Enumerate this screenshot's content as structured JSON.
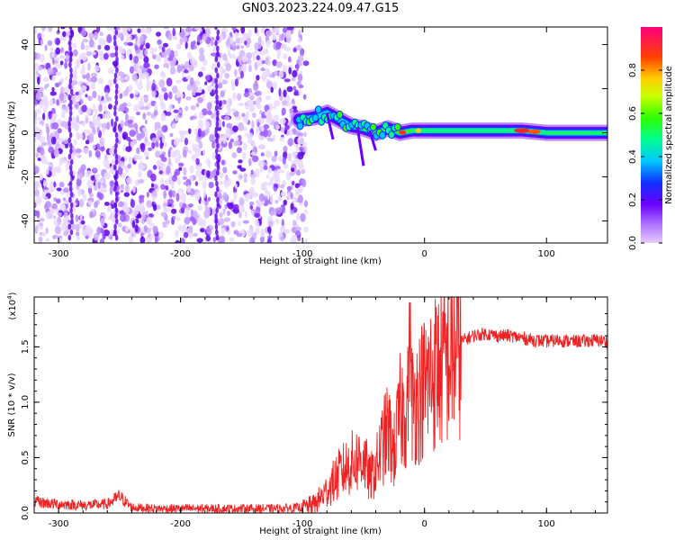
{
  "title": "GN03.2023.224.09.47.G15",
  "chart_data": [
    {
      "type": "heatmap",
      "xlabel": "Height of straight line (km)",
      "ylabel": "Frequency (Hz)",
      "xlim": [
        -320,
        150
      ],
      "ylim": [
        -50,
        48
      ],
      "x_ticks": [
        -300,
        -200,
        -100,
        0,
        100
      ],
      "y_ticks": [
        -40,
        -20,
        0,
        20,
        40
      ],
      "noise_region_x": [
        -320,
        -97
      ],
      "signal_track": [
        {
          "x": -103,
          "y": 6
        },
        {
          "x": -90,
          "y": 7
        },
        {
          "x": -80,
          "y": 9
        },
        {
          "x": -70,
          "y": 6
        },
        {
          "x": -60,
          "y": 3
        },
        {
          "x": -50,
          "y": 2
        },
        {
          "x": -40,
          "y": 0
        },
        {
          "x": -30,
          "y": 2
        },
        {
          "x": -20,
          "y": 0
        },
        {
          "x": -10,
          "y": 1
        },
        {
          "x": 0,
          "y": 1
        },
        {
          "x": 20,
          "y": 1
        },
        {
          "x": 40,
          "y": 1
        },
        {
          "x": 60,
          "y": 1
        },
        {
          "x": 80,
          "y": 1
        },
        {
          "x": 100,
          "y": 0
        },
        {
          "x": 120,
          "y": 0
        },
        {
          "x": 150,
          "y": 0
        }
      ],
      "colorbar": {
        "label": "Normalized spectral amplitude",
        "range": [
          0.0,
          1.0
        ],
        "ticks": [
          0.0,
          0.2,
          0.4,
          0.6,
          0.8
        ]
      }
    },
    {
      "type": "line",
      "xlabel": "Height of straight line (km)",
      "ylabel": "SNR (10 * v/v)",
      "y_multiplier": "(x10",
      "y_multiplier_exp": "4",
      "xlim": [
        -320,
        150
      ],
      "ylim": [
        0,
        1.95
      ],
      "x_ticks": [
        -300,
        -200,
        -100,
        0,
        100
      ],
      "y_ticks": [
        0.0,
        0.5,
        1.0,
        1.5
      ],
      "series": [
        {
          "color": "#ee2222",
          "x": [
            -320,
            -300,
            -280,
            -260,
            -250,
            -240,
            -220,
            -200,
            -180,
            -160,
            -140,
            -120,
            -100,
            -90,
            -80,
            -70,
            -60,
            -50,
            -45,
            -40,
            -35,
            -30,
            -25,
            -20,
            -15,
            -10,
            -5,
            0,
            10,
            20,
            30,
            40,
            50,
            60,
            70,
            80,
            90,
            100,
            110,
            120,
            130,
            140,
            150
          ],
          "y": [
            0.1,
            0.08,
            0.07,
            0.08,
            0.15,
            0.05,
            0.04,
            0.04,
            0.04,
            0.04,
            0.04,
            0.04,
            0.05,
            0.08,
            0.2,
            0.35,
            0.45,
            0.5,
            0.3,
            0.4,
            0.6,
            0.75,
            0.55,
            0.9,
            0.95,
            1.0,
            1.05,
            1.15,
            1.3,
            1.4,
            1.55,
            1.6,
            1.62,
            1.6,
            1.6,
            1.58,
            1.56,
            1.55,
            1.56,
            1.55,
            1.55,
            1.56,
            1.55
          ]
        }
      ]
    }
  ],
  "colors": {
    "noise": "#7a22ff",
    "line": "#ee2222"
  }
}
